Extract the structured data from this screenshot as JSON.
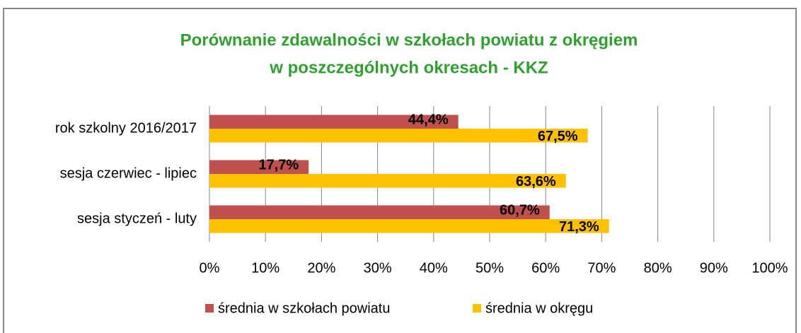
{
  "chart_data": {
    "type": "hbar",
    "title": [
      "Porównanie zdawalności w szkołach powiatu z okręgiem",
      "w poszczególnych okresach - KKZ"
    ],
    "categories": [
      "rok szkolny 2016/2017",
      "sesja czerwiec - lipiec",
      "sesja styczeń - luty"
    ],
    "series": [
      {
        "name": "średnia w szkołach powiatu",
        "color": "#c0504d",
        "values": [
          44.4,
          17.7,
          60.7
        ],
        "value_labels": [
          "44,4%",
          "17,7%",
          "60,7%"
        ]
      },
      {
        "name": "średnia w okręgu",
        "color": "#ffc000",
        "values": [
          67.5,
          63.6,
          71.3
        ],
        "value_labels": [
          "67,5%",
          "63,6%",
          "71,3%"
        ]
      }
    ],
    "xlim": [
      0,
      100
    ],
    "xticks": [
      {
        "value": 0,
        "label": "0%"
      },
      {
        "value": 10,
        "label": "10%"
      },
      {
        "value": 20,
        "label": "20%"
      },
      {
        "value": 30,
        "label": "30%"
      },
      {
        "value": 40,
        "label": "40%"
      },
      {
        "value": 50,
        "label": "50%"
      },
      {
        "value": 60,
        "label": "60%"
      },
      {
        "value": 70,
        "label": "70%"
      },
      {
        "value": 80,
        "label": "80%"
      },
      {
        "value": 90,
        "label": "90%"
      },
      {
        "value": 100,
        "label": "100%"
      }
    ],
    "grid": true,
    "legend": "bottom"
  }
}
